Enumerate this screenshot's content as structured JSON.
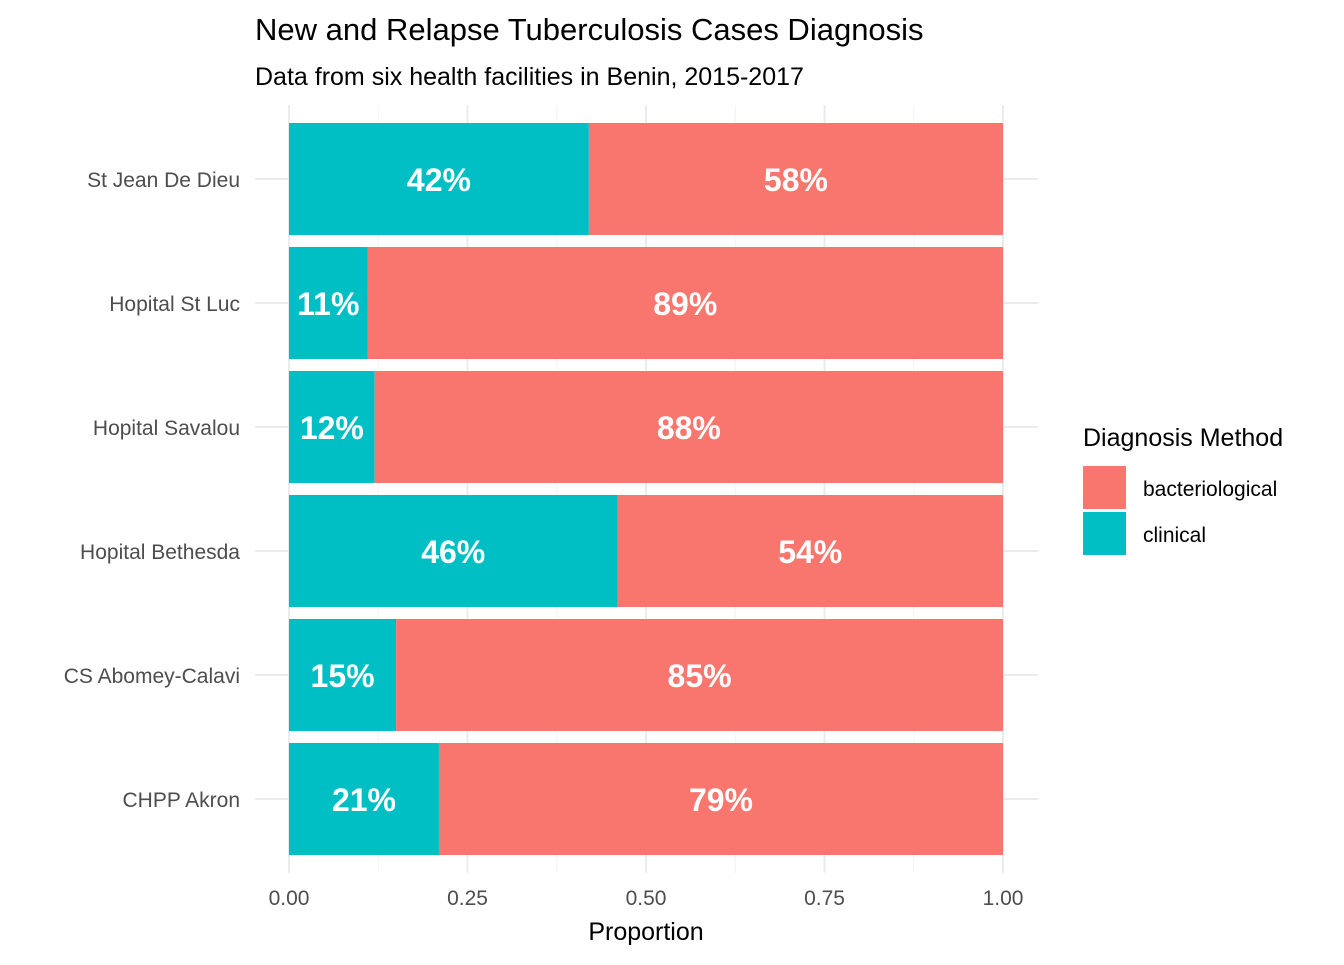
{
  "chart_data": {
    "type": "bar",
    "orientation": "horizontal",
    "stacked": true,
    "title": "New and Relapse Tuberculosis Cases Diagnosis",
    "subtitle": "Data from six health facilities in Benin, 2015-2017",
    "xlabel": "Proportion",
    "ylabel": "",
    "xlim": [
      0,
      1
    ],
    "x_ticks": [
      "0.00",
      "0.25",
      "0.50",
      "0.75",
      "1.00"
    ],
    "x_tick_values": [
      0,
      0.25,
      0.5,
      0.75,
      1.0
    ],
    "grid": true,
    "categories": [
      "St Jean De Dieu",
      "Hopital St Luc",
      "Hopital Savalou",
      "Hopital Bethesda",
      "CS Abomey-Calavi",
      "CHPP Akron"
    ],
    "series": [
      {
        "name": "clinical",
        "color": "#00BFC4",
        "values": [
          0.42,
          0.11,
          0.12,
          0.46,
          0.15,
          0.21
        ],
        "labels": [
          "42%",
          "11%",
          "12%",
          "46%",
          "15%",
          "21%"
        ]
      },
      {
        "name": "bacteriological",
        "color": "#F8766D",
        "values": [
          0.58,
          0.89,
          0.88,
          0.54,
          0.85,
          0.79
        ],
        "labels": [
          "58%",
          "89%",
          "88%",
          "54%",
          "85%",
          "79%"
        ]
      }
    ],
    "legend": {
      "title": "Diagnosis Method",
      "position": "right",
      "items": [
        {
          "label": "bacteriological",
          "color": "#F8766D"
        },
        {
          "label": "clinical",
          "color": "#00BFC4"
        }
      ]
    }
  }
}
